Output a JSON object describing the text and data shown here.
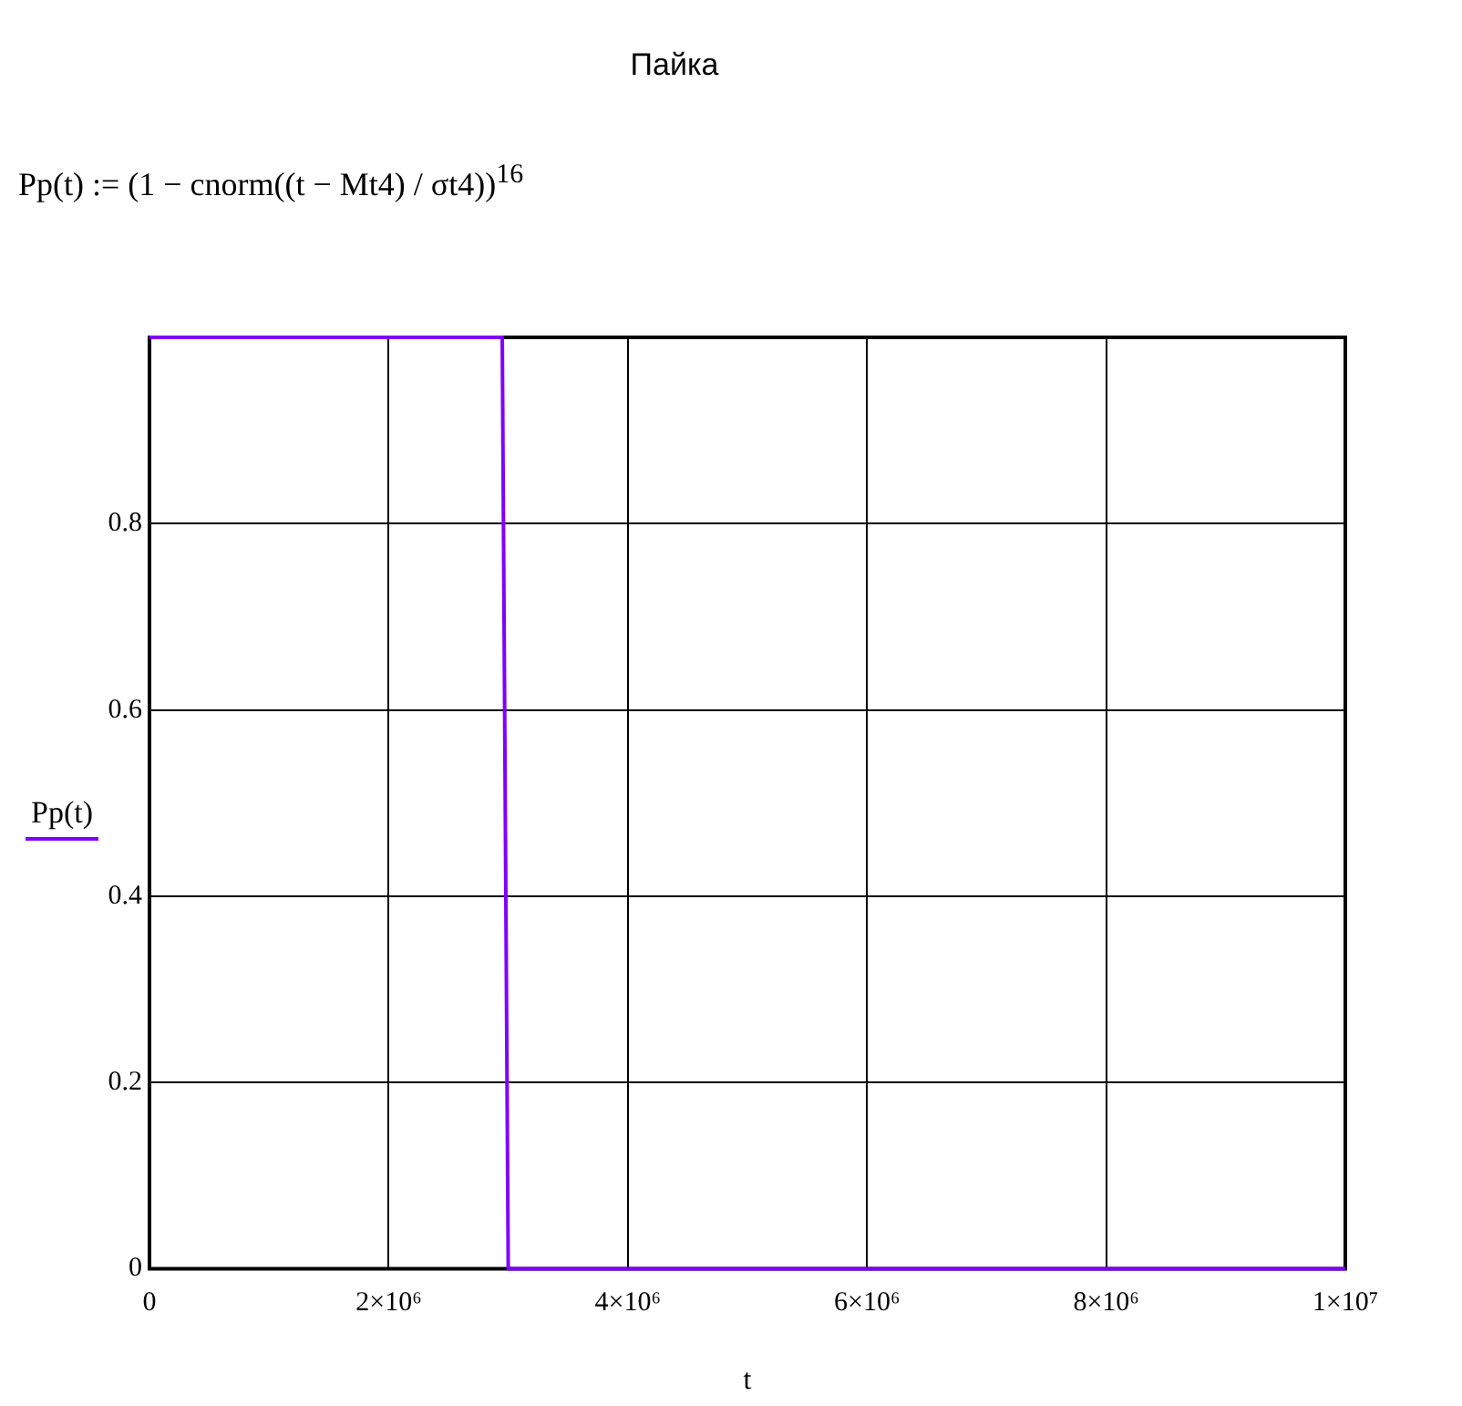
{
  "chart_data": {
    "type": "line",
    "title": "Пайка",
    "annotations": [
      "Pp(t) := (1 − cnorm((t − Mt4) / σt4))$^{16}$"
    ],
    "xlabel": "t",
    "x": [
      0,
      2950000,
      3000000,
      10000000
    ],
    "series": [
      {
        "name": "Pp(t)",
        "color": "#8000ff",
        "values": [
          1,
          1,
          0,
          0
        ]
      }
    ],
    "xlim": [
      0,
      10000000
    ],
    "ylim": [
      0,
      1
    ],
    "xticks": [
      0,
      {
        "value": 2000000,
        "label": "2×10⁶"
      },
      {
        "value": 4000000,
        "label": "4×10⁶"
      },
      {
        "value": 6000000,
        "label": "6×10⁶"
      },
      {
        "value": 8000000,
        "label": "8×10⁶"
      },
      {
        "value": 10000000,
        "label": "1×10⁷"
      }
    ],
    "yticks": [
      0,
      0.2,
      0.4,
      0.6,
      0.8,
      {
        "value": 1,
        "label": null
      }
    ],
    "grid": true,
    "legend": "left",
    "marker": "none",
    "line_style": "solid"
  }
}
